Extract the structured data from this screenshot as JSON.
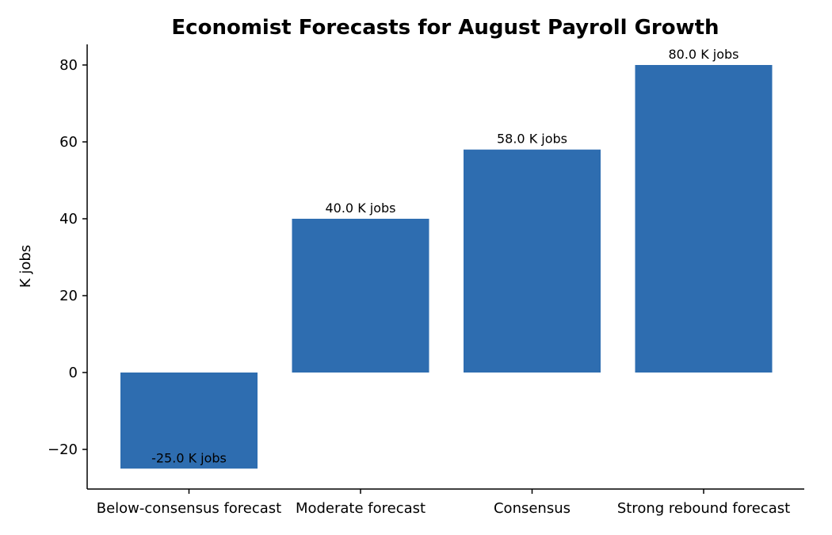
{
  "chart_data": {
    "type": "bar",
    "title": "Economist Forecasts for August Payroll Growth",
    "xlabel": "",
    "ylabel": "K jobs",
    "categories": [
      "Below-consensus forecast",
      "Moderate forecast",
      "Consensus",
      "Strong rebound forecast"
    ],
    "values": [
      -25.0,
      40.0,
      58.0,
      80.0
    ],
    "data_labels": [
      "-25.0 K jobs",
      "40.0 K jobs",
      "58.0 K jobs",
      "80.0 K jobs"
    ],
    "yticks": [
      -20,
      0,
      20,
      40,
      60,
      80
    ],
    "ytick_labels": [
      "−20",
      "0",
      "20",
      "40",
      "60",
      "80"
    ],
    "ylim": [
      -30,
      85
    ],
    "grid": false,
    "legend": "none",
    "bar_color": "#2e6db0"
  }
}
